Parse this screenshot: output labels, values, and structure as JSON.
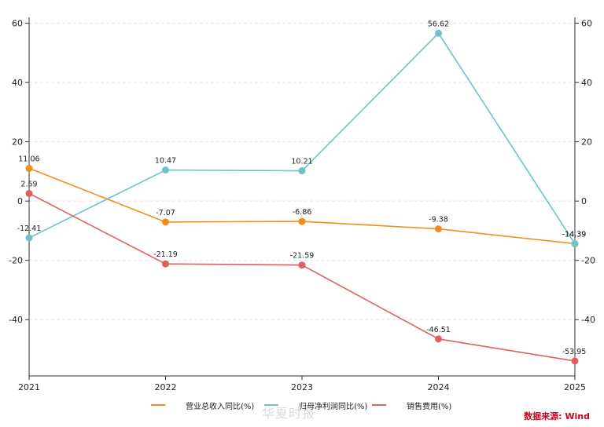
{
  "chart_data": {
    "type": "line",
    "categories": [
      "2021",
      "2022",
      "2023",
      "2024",
      "2025"
    ],
    "series": [
      {
        "name": "营业总收入同比(%)",
        "values": [
          11.06,
          -7.07,
          -6.86,
          -9.38,
          -14.39
        ],
        "color": "#f28c1c",
        "axis": "left"
      },
      {
        "name": "归母净利润同比(%)",
        "values": [
          -12.41,
          10.47,
          10.21,
          56.62,
          -14.39
        ],
        "color": "#6cc4c8",
        "axis": "right"
      },
      {
        "name": "销售费用(%)",
        "values": [
          2.59,
          -21.19,
          -21.59,
          -46.51,
          -53.95
        ],
        "color": "#e06060",
        "axis": "left"
      }
    ],
    "ylim": [
      -59,
      62
    ],
    "yticks": [
      -40,
      -20,
      0,
      20,
      40,
      60
    ],
    "grid": true,
    "legend": "bottom-center"
  },
  "legend_labels": [
    "营业总收入同比(%)",
    "归母净利润同比(%)",
    "销售费用(%)"
  ],
  "watermark": "华夏时报",
  "source": "数据来源: Wind"
}
